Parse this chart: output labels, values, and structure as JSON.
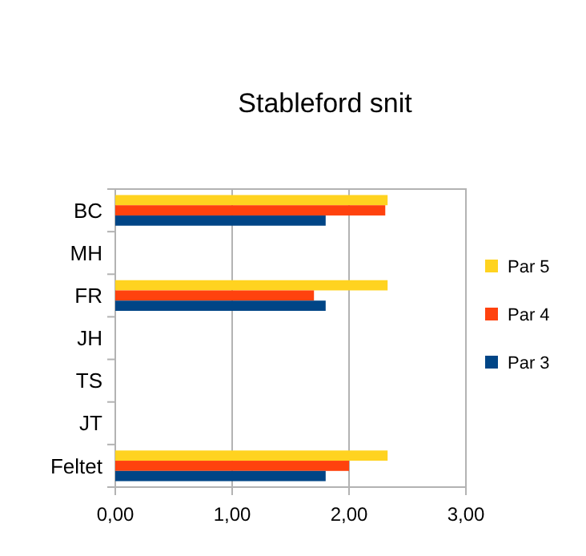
{
  "chart_data": {
    "type": "bar",
    "orientation": "horizontal",
    "title": "Stableford snit",
    "categories": [
      "BC",
      "MH",
      "FR",
      "JH",
      "TS",
      "JT",
      "Feltet"
    ],
    "series": [
      {
        "name": "Par 5",
        "color": "#ffd320",
        "values": [
          2.33,
          null,
          2.33,
          null,
          null,
          null,
          2.33
        ]
      },
      {
        "name": "Par 4",
        "color": "#ff420e",
        "values": [
          2.31,
          null,
          1.7,
          null,
          null,
          null,
          2.0
        ]
      },
      {
        "name": "Par 3",
        "color": "#004586",
        "values": [
          1.8,
          null,
          1.8,
          null,
          null,
          null,
          1.8
        ]
      }
    ],
    "xlim": [
      0,
      3
    ],
    "xticks": [
      {
        "value": 0,
        "label": "0,00"
      },
      {
        "value": 1,
        "label": "1,00"
      },
      {
        "value": 2,
        "label": "2,00"
      },
      {
        "value": 3,
        "label": "3,00"
      }
    ],
    "grid": "x",
    "legend": "right"
  }
}
